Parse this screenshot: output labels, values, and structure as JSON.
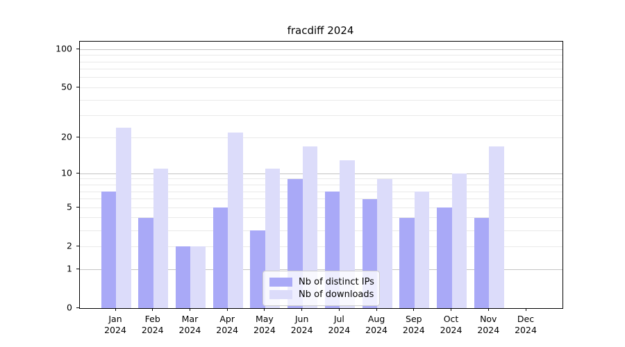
{
  "title": "fracdiff 2024",
  "chart_data": {
    "type": "bar",
    "title": "fracdiff 2024",
    "xlabel": "",
    "ylabel": "",
    "categories": [
      {
        "month": "Jan",
        "year": "2024"
      },
      {
        "month": "Feb",
        "year": "2024"
      },
      {
        "month": "Mar",
        "year": "2024"
      },
      {
        "month": "Apr",
        "year": "2024"
      },
      {
        "month": "May",
        "year": "2024"
      },
      {
        "month": "Jun",
        "year": "2024"
      },
      {
        "month": "Jul",
        "year": "2024"
      },
      {
        "month": "Aug",
        "year": "2024"
      },
      {
        "month": "Sep",
        "year": "2024"
      },
      {
        "month": "Oct",
        "year": "2024"
      },
      {
        "month": "Nov",
        "year": "2024"
      },
      {
        "month": "Dec",
        "year": "2024"
      }
    ],
    "series": [
      {
        "name": "Nb of distinct IPs",
        "color": "#a9a9f7",
        "values": [
          7,
          4,
          2,
          5,
          3,
          9,
          7,
          6,
          4,
          5,
          4,
          0
        ]
      },
      {
        "name": "Nb of downloads",
        "color": "#dcdcfa",
        "values": [
          24,
          11,
          2,
          22,
          11,
          17,
          13,
          9,
          7,
          10,
          17,
          0
        ]
      }
    ],
    "scale": "log1p",
    "ylim": [
      0,
      115
    ],
    "yticks": [
      {
        "label": "100",
        "value": 100
      },
      {
        "label": "50",
        "value": 50
      },
      {
        "label": "20",
        "value": 20
      },
      {
        "label": "10",
        "value": 10
      },
      {
        "label": "5",
        "value": 5
      },
      {
        "label": "2",
        "value": 2
      },
      {
        "label": "1",
        "value": 1
      },
      {
        "label": "0",
        "value": 0
      }
    ],
    "gridlines": {
      "major": [
        1,
        10,
        100
      ],
      "minor": [
        2,
        3,
        4,
        5,
        6,
        7,
        8,
        9,
        20,
        30,
        40,
        50,
        60,
        70,
        80,
        90
      ]
    },
    "grid": true,
    "legend_position": "lower-center-inside"
  },
  "colors": {
    "background": "#ffffff",
    "spine": "#000000",
    "major_grid": "#c3c3c3",
    "minor_grid": "#e9e9e9",
    "bar_distinct_ips": "#a9a9f7",
    "bar_downloads": "#dcdcfa",
    "legend_border": "#cccccc"
  }
}
